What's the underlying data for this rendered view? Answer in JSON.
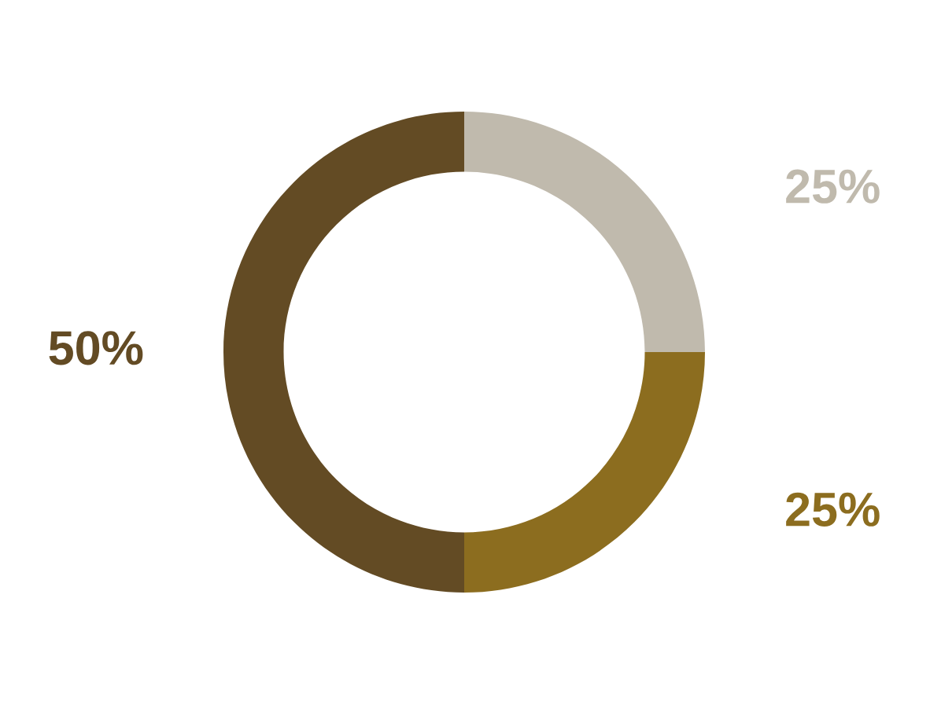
{
  "chart_data": {
    "type": "donut",
    "categories": [
      null,
      null,
      null
    ],
    "values": [
      25,
      25,
      50
    ],
    "colors": [
      "#c0baad",
      "#8c6d1f",
      "#634b24"
    ],
    "value_labels": [
      "25%",
      "25%",
      "50%"
    ]
  }
}
